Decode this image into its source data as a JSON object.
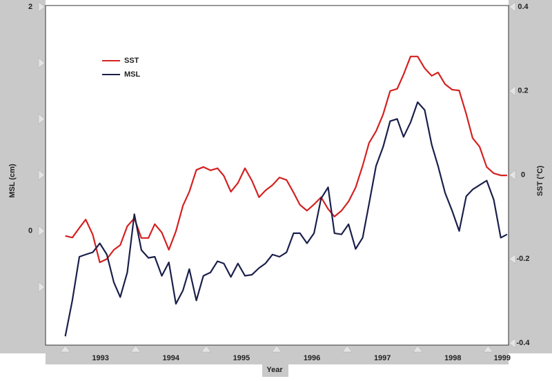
{
  "chart_data": {
    "type": "line",
    "xlabel": "Year",
    "ylabel": "MSL (cm)",
    "y2label": "SST (°C)",
    "x": [
      1993.0,
      1993.1,
      1993.2,
      1993.29,
      1993.39,
      1993.49,
      1993.59,
      1993.69,
      1993.78,
      1993.88,
      1993.98,
      1994.08,
      1994.18,
      1994.27,
      1994.37,
      1994.47,
      1994.57,
      1994.67,
      1994.76,
      1994.86,
      1994.96,
      1995.06,
      1995.16,
      1995.25,
      1995.35,
      1995.45,
      1995.55,
      1995.65,
      1995.75,
      1995.84,
      1995.94,
      1996.04,
      1996.14,
      1996.24,
      1996.33,
      1996.43,
      1996.53,
      1996.63,
      1996.73,
      1996.82,
      1996.92,
      1997.02,
      1997.12,
      1997.22,
      1997.31,
      1997.41,
      1997.51,
      1997.61,
      1997.71,
      1997.8,
      1997.9,
      1998.0,
      1998.1,
      1998.2,
      1998.29,
      1998.39,
      1998.49,
      1998.59,
      1998.69,
      1998.78,
      1998.88,
      1998.98,
      1999.08,
      1999.18,
      1999.27
    ],
    "series": [
      {
        "name": "SST",
        "color": "#d42020",
        "axis": "y2",
        "values": [
          -0.145,
          -0.149,
          -0.126,
          -0.106,
          -0.142,
          -0.208,
          -0.2,
          -0.178,
          -0.167,
          -0.122,
          -0.103,
          -0.15,
          -0.15,
          -0.117,
          -0.137,
          -0.178,
          -0.134,
          -0.073,
          -0.04,
          0.012,
          0.019,
          0.011,
          0.016,
          -0.002,
          -0.04,
          -0.019,
          0.016,
          -0.014,
          -0.053,
          -0.037,
          -0.024,
          -0.006,
          -0.012,
          -0.042,
          -0.071,
          -0.085,
          -0.07,
          -0.053,
          -0.081,
          -0.099,
          -0.085,
          -0.063,
          -0.03,
          0.022,
          0.076,
          0.104,
          0.144,
          0.2,
          0.205,
          0.239,
          0.282,
          0.282,
          0.254,
          0.236,
          0.244,
          0.216,
          0.203,
          0.201,
          0.145,
          0.088,
          0.067,
          0.019,
          0.004,
          -0.001,
          -0.001
        ]
      },
      {
        "name": "MSL",
        "color": "#1a1f4a",
        "values": [
          -0.94,
          -0.62,
          -0.23,
          -0.21,
          -0.19,
          -0.11,
          -0.21,
          -0.46,
          -0.59,
          -0.37,
          0.15,
          -0.17,
          -0.24,
          -0.23,
          -0.4,
          -0.28,
          -0.65,
          -0.53,
          -0.34,
          -0.62,
          -0.4,
          -0.37,
          -0.27,
          -0.29,
          -0.41,
          -0.29,
          -0.4,
          -0.39,
          -0.33,
          -0.29,
          -0.21,
          -0.23,
          -0.19,
          -0.02,
          -0.02,
          -0.11,
          -0.02,
          0.29,
          0.39,
          -0.02,
          -0.03,
          0.06,
          -0.16,
          -0.06,
          0.24,
          0.58,
          0.75,
          0.98,
          1.0,
          0.84,
          0.97,
          1.15,
          1.08,
          0.77,
          0.58,
          0.34,
          0.18,
          0.0,
          0.31,
          0.37,
          0.41,
          0.45,
          0.28,
          -0.06,
          -0.03
        ]
      }
    ],
    "xlim": [
      1992.72,
      1999.29
    ],
    "xticks": [
      {
        "value": 1993.5,
        "label": "1993"
      },
      {
        "value": 1994.5,
        "label": "1994"
      },
      {
        "value": 1995.5,
        "label": "1995"
      },
      {
        "value": 1996.5,
        "label": "1996"
      },
      {
        "value": 1997.5,
        "label": "1997"
      },
      {
        "value": 1998.5,
        "label": "1998"
      },
      {
        "value": 1999.2,
        "label": "1999"
      }
    ],
    "xminor": [
      1993,
      1994,
      1995,
      1996,
      1997,
      1998,
      1999
    ],
    "ylim": [
      -1,
      2
    ],
    "yticks": [
      0,
      2
    ],
    "yminor": [
      -0.5,
      0.5,
      1,
      1.5
    ],
    "y2lim": [
      -0.4,
      0.4
    ],
    "y2ticks": [
      -0.4,
      -0.2,
      0.0,
      0.2,
      0.4
    ],
    "legend": "upper left"
  }
}
